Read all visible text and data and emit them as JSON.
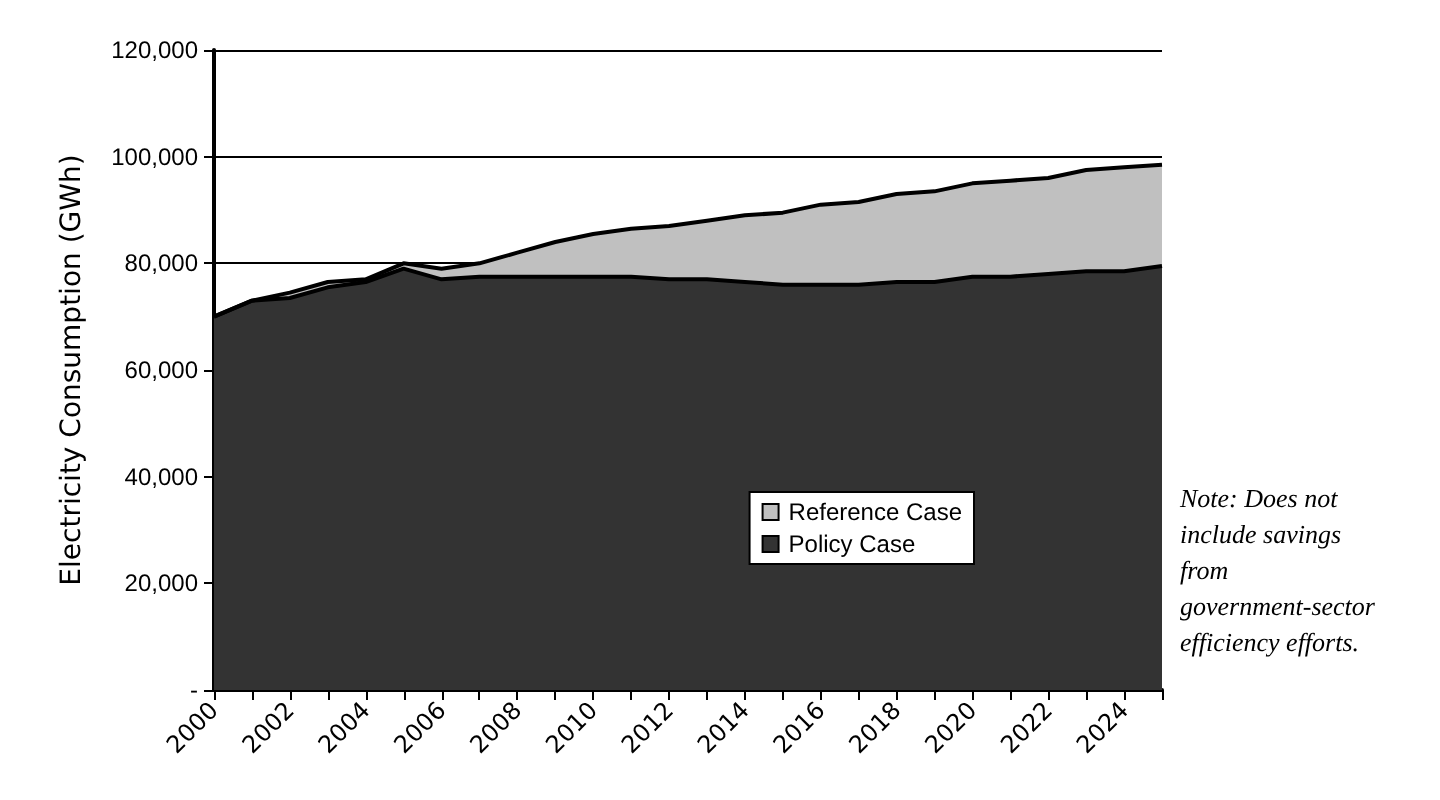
{
  "chart_data": {
    "type": "area",
    "ylabel": "Electricity Consumption (GWh)",
    "categories": [
      "2000",
      null,
      "2002",
      null,
      "2004",
      null,
      "2006",
      null,
      "2008",
      null,
      "2010",
      null,
      "2012",
      null,
      "2014",
      null,
      "2016",
      null,
      "2018",
      null,
      "2020",
      null,
      "2022",
      null,
      "2024",
      null
    ],
    "series": [
      {
        "name": "Reference Case",
        "color": "#c0c0c0",
        "values": [
          70000,
          73000,
          74500,
          76500,
          77000,
          80000,
          79000,
          80000,
          82000,
          84000,
          85500,
          86500,
          87000,
          88000,
          89000,
          89500,
          91000,
          91500,
          93000,
          93500,
          95000,
          95500,
          96000,
          97500,
          98000,
          98500
        ]
      },
      {
        "name": "Policy Case",
        "color": "#333333",
        "values": [
          70000,
          73000,
          73500,
          75500,
          76500,
          79000,
          77000,
          77500,
          77500,
          77500,
          77500,
          77500,
          77000,
          77000,
          76500,
          76000,
          76000,
          76000,
          76500,
          76500,
          77500,
          77500,
          78000,
          78500,
          78500,
          79500
        ]
      }
    ],
    "ylim": [
      0,
      120000
    ],
    "yticks": [
      {
        "value": 0,
        "label": "-"
      },
      {
        "value": 20000,
        "label": "20,000"
      },
      {
        "value": 40000,
        "label": "40,000"
      },
      {
        "value": 60000,
        "label": "60,000"
      },
      {
        "value": 80000,
        "label": "80,000"
      },
      {
        "value": 100000,
        "label": "100,000"
      },
      {
        "value": 120000,
        "label": "120,000"
      }
    ],
    "grid": "y",
    "legend": "bottom right",
    "marker": "none",
    "annotations": [
      "Note: Does not include savings from government-sector efficiency efforts."
    ]
  }
}
